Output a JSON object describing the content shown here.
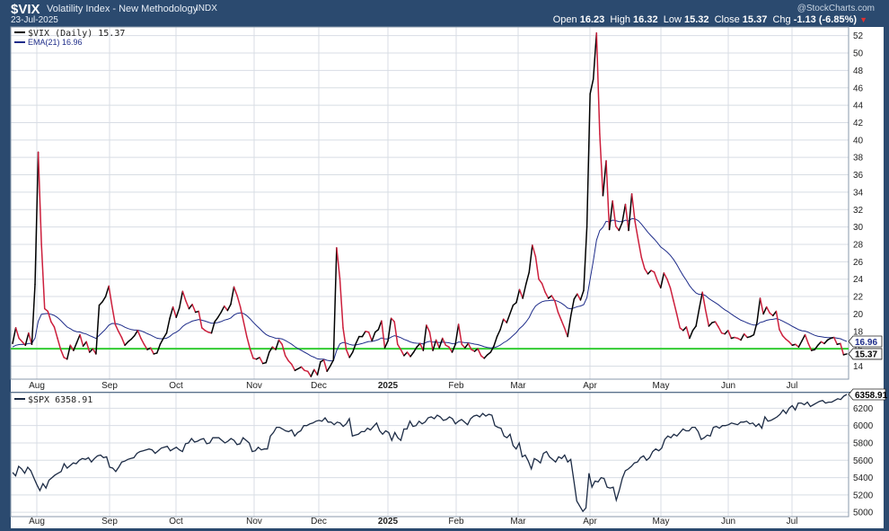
{
  "header": {
    "symbol": "$VIX",
    "description": "Volatility Index - New Methodology",
    "exchange": "INDX",
    "date": "23-Jul-2025",
    "watermark": "@StockCharts.com",
    "open_label": "Open",
    "open": "16.23",
    "high_label": "High",
    "high": "16.32",
    "low_label": "Low",
    "low": "15.32",
    "close_label": "Close",
    "close": "15.37",
    "chg_label": "Chg",
    "chg": "-1.13 (-6.85%)"
  },
  "colors": {
    "frame": "#2b4a6f",
    "panel_bg": "#ffffff",
    "grid": "#d8dde4",
    "vix_up": "#000000",
    "vix_down": "#cc1f3c",
    "ema": "#1f2d8a",
    "horizontal_line": "#33cc33",
    "spx": "#1c2b45"
  },
  "chart_data": [
    {
      "type": "line",
      "legend": [
        "$VIX (Daily) 15.37",
        "EMA(21) 16.96"
      ],
      "x_ticks": [
        "Aug",
        "Sep",
        "Oct",
        "Nov",
        "Dec",
        "2025",
        "Feb",
        "Mar",
        "Apr",
        "May",
        "Jun",
        "Jul"
      ],
      "y_ticks": [
        14,
        16,
        18,
        20,
        22,
        24,
        26,
        28,
        30,
        32,
        34,
        36,
        38,
        40,
        42,
        44,
        46,
        48,
        50,
        52
      ],
      "ylim": [
        12.5,
        53
      ],
      "horizontal_line": 16,
      "last_value_tags": [
        "16.96",
        "15.37"
      ],
      "series": [
        {
          "name": "$VIX (Daily)",
          "values": [
            16.6,
            18.4,
            17.2,
            16.8,
            16.4,
            17.8,
            16.5,
            23.4,
            38.6,
            28.0,
            20.6,
            20.3,
            19.1,
            18.5,
            17.2,
            15.9,
            15.0,
            14.8,
            16.4,
            15.8,
            16.7,
            17.6,
            16.3,
            16.8,
            15.6,
            16.0,
            15.4,
            21.0,
            21.4,
            22.0,
            23.2,
            20.9,
            18.8,
            18.0,
            17.3,
            16.4,
            16.8,
            17.1,
            17.5,
            18.1,
            17.2,
            16.5,
            15.9,
            16.1,
            15.4,
            15.5,
            16.5,
            17.2,
            17.8,
            19.5,
            20.8,
            19.6,
            20.7,
            22.6,
            21.5,
            20.6,
            21.1,
            20.2,
            20.3,
            18.4,
            18.1,
            17.9,
            17.8,
            19.1,
            19.6,
            20.2,
            20.9,
            20.4,
            21.1,
            23.1,
            22.1,
            20.8,
            19.1,
            17.4,
            16.0,
            14.9,
            14.8,
            15.0,
            14.3,
            14.4,
            15.6,
            16.2,
            15.9,
            17.0,
            16.5,
            15.2,
            14.6,
            14.2,
            13.5,
            13.7,
            13.9,
            13.5,
            13.4,
            12.8,
            13.6,
            13.0,
            14.5,
            14.7,
            13.4,
            14.0,
            14.7,
            27.6,
            24.1,
            18.4,
            15.9,
            15.0,
            15.6,
            16.6,
            17.4,
            17.4,
            18.0,
            17.9,
            16.9,
            17.9,
            18.2,
            19.2,
            16.1,
            16.9,
            19.5,
            19.1,
            16.5,
            15.9,
            15.2,
            15.6,
            15.1,
            15.6,
            16.2,
            16.6,
            15.8,
            18.7,
            17.9,
            15.8,
            17.0,
            16.1,
            17.2,
            16.4,
            16.2,
            15.6,
            16.5,
            18.8,
            16.5,
            16.1,
            16.6,
            15.9,
            15.7,
            16.0,
            15.2,
            14.9,
            15.3,
            15.6,
            16.3,
            17.4,
            18.2,
            19.4,
            19.0,
            20.0,
            21.0,
            21.3,
            22.8,
            21.8,
            23.4,
            24.8,
            27.9,
            26.6,
            24.0,
            23.5,
            22.5,
            21.8,
            22.1,
            21.5,
            20.2,
            19.3,
            18.4,
            17.4,
            19.8,
            21.7,
            22.3,
            21.6,
            22.7,
            30.0,
            45.3,
            47.0,
            52.3,
            40.7,
            33.6,
            37.6,
            29.7,
            33.0,
            30.1,
            29.6,
            30.5,
            32.6,
            29.6,
            33.8,
            30.6,
            28.5,
            26.5,
            25.2,
            24.6,
            25.0,
            24.8,
            23.8,
            23.0,
            24.7,
            24.0,
            23.0,
            21.5,
            20.0,
            18.4,
            18.1,
            18.5,
            17.2,
            18.1,
            18.6,
            20.6,
            22.5,
            20.4,
            18.6,
            19.0,
            19.1,
            18.5,
            17.8,
            17.7,
            18.1,
            17.2,
            17.3,
            17.2,
            17.0,
            17.7,
            17.3,
            17.4,
            17.6,
            19.0,
            21.8,
            20.0,
            20.8,
            20.1,
            19.8,
            20.3,
            18.2,
            17.5,
            17.1,
            16.8,
            16.4,
            16.5,
            16.2,
            16.9,
            17.6,
            16.6,
            15.8,
            15.9,
            16.4,
            16.8,
            16.6,
            17.0,
            17.2,
            17.3,
            16.5,
            16.6,
            15.3,
            15.4
          ]
        },
        {
          "name": "EMA(21)"
        }
      ]
    },
    {
      "type": "line",
      "legend": [
        "$SPX 6358.91"
      ],
      "x_ticks": [
        "Aug",
        "Sep",
        "Oct",
        "Nov",
        "Dec",
        "2025",
        "Feb",
        "Mar",
        "Apr",
        "May",
        "Jun",
        "Jul"
      ],
      "y_ticks": [
        5000,
        5200,
        5400,
        5600,
        5800,
        6000,
        6200
      ],
      "ylim": [
        4950,
        6380
      ],
      "last_value_tags": [
        "6358.91"
      ],
      "series": [
        {
          "name": "$SPX",
          "values": [
            5460,
            5420,
            5530,
            5500,
            5450,
            5520,
            5480,
            5400,
            5320,
            5250,
            5330,
            5280,
            5370,
            5400,
            5430,
            5450,
            5470,
            5560,
            5510,
            5540,
            5570,
            5560,
            5600,
            5620,
            5610,
            5630,
            5580,
            5620,
            5650,
            5660,
            5630,
            5640,
            5520,
            5510,
            5470,
            5520,
            5580,
            5590,
            5610,
            5620,
            5630,
            5680,
            5700,
            5710,
            5720,
            5730,
            5720,
            5680,
            5710,
            5740,
            5750,
            5760,
            5710,
            5730,
            5750,
            5720,
            5700,
            5790,
            5800,
            5850,
            5810,
            5820,
            5840,
            5850,
            5790,
            5800,
            5860,
            5860,
            5860,
            5830,
            5800,
            5820,
            5850,
            5830,
            5780,
            5790,
            5860,
            5830,
            5800,
            5700,
            5710,
            5750,
            5720,
            5730,
            5730,
            5880,
            5920,
            5980,
            5980,
            5960,
            5940,
            5930,
            5950,
            5880,
            5920,
            5940,
            6000,
            6000,
            6020,
            6030,
            6050,
            6060,
            6050,
            6090,
            6040,
            6040,
            6010,
            6040,
            6030,
            5990,
            6020,
            6080,
            5880,
            5890,
            5900,
            5930,
            5930,
            5970,
            5950,
            5990,
            6030,
            5940,
            5900,
            5940,
            5920,
            5830,
            5920,
            5860,
            5830,
            5960,
            5960,
            6050,
            5990,
            6000,
            6050,
            6020,
            6040,
            6090,
            6100,
            6080,
            6120,
            6100,
            6060,
            6070,
            6100,
            6080,
            6020,
            6050,
            6070,
            6040,
            6010,
            6080,
            6110,
            6120,
            6100,
            6140,
            6110,
            6130,
            6120,
            6000,
            5980,
            5970,
            5880,
            5860,
            5900,
            5770,
            5730,
            5800,
            5640,
            5660,
            5590,
            5500,
            5620,
            5600,
            5570,
            5680,
            5700,
            5640,
            5610,
            5580,
            5640,
            5620,
            5660,
            5580,
            5610,
            5370,
            5130,
            5070,
            5010,
            5050,
            5450,
            5290,
            5360,
            5350,
            5400,
            5390,
            5290,
            5280,
            5290,
            5140,
            5250,
            5390,
            5480,
            5500,
            5530,
            5570,
            5580,
            5630,
            5650,
            5600,
            5630,
            5700,
            5730,
            5710,
            5740,
            5840,
            5880,
            5860,
            5900,
            5880,
            5920,
            5960,
            5940,
            5940,
            5980,
            5980,
            5930,
            5840,
            5860,
            5890,
            5880,
            5980,
            5990,
            5970,
            6000,
            6000,
            6010,
            6030,
            6020,
            6010,
            6040,
            6040,
            6050,
            6020,
            6030,
            5990,
            6020,
            5970,
            6100,
            6050,
            6060,
            6080,
            6100,
            6130,
            6180,
            6140,
            6200,
            6230,
            6180,
            6260,
            6260,
            6240,
            6270,
            6220,
            6240,
            6260,
            6280,
            6290,
            6260,
            6270,
            6270,
            6290,
            6310,
            6300,
            6340,
            6358.91
          ]
        }
      ]
    }
  ]
}
